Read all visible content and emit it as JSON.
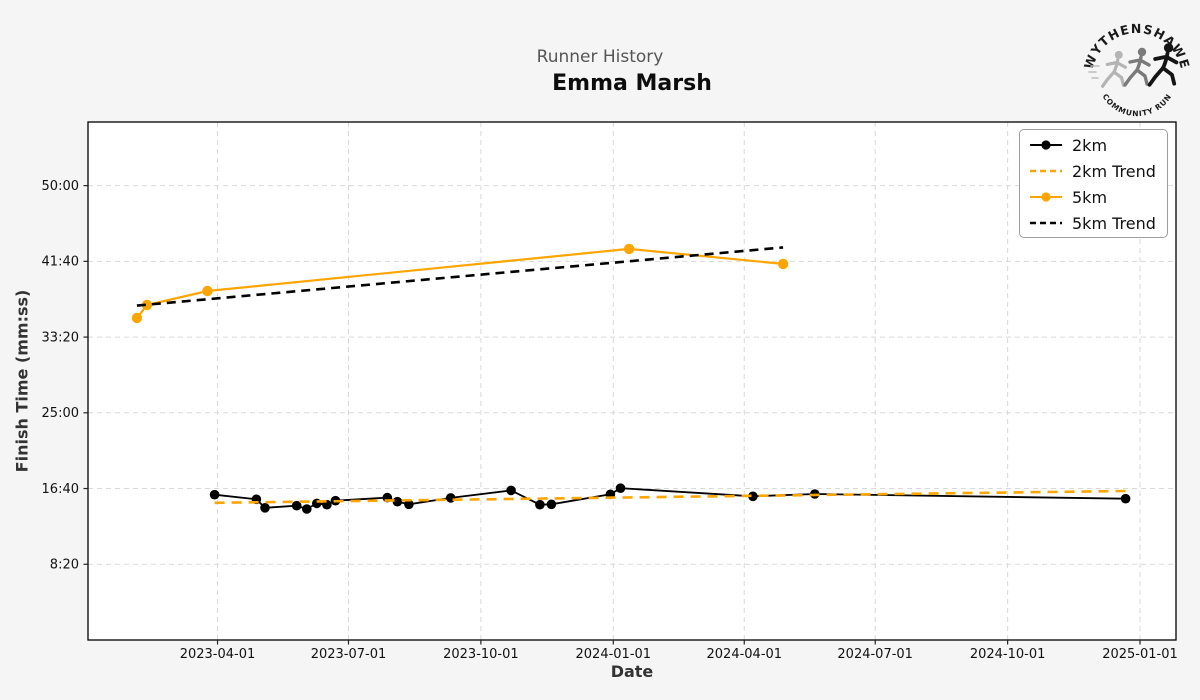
{
  "figure": {
    "background": "#f5f5f5",
    "plot_background": "#ffffff"
  },
  "logo": {
    "top_text": "WYTHENSHAWE",
    "bottom_text": "COMMUNITY RUN"
  },
  "colors": {
    "orange": "#FFA500",
    "black": "#000000",
    "grid": "#d9d9d9",
    "title_gray": "#555555"
  },
  "chart_data": {
    "type": "line",
    "title": "Runner History",
    "subtitle": "Emma Marsh",
    "xlabel": "Date",
    "ylabel": "Finish Time (mm:ss)",
    "grid": true,
    "legend_position": "upper right",
    "x_axis": {
      "range": [
        "2023-01-01",
        "2025-01-26"
      ],
      "ticks": [
        "2023-04-01",
        "2023-07-01",
        "2023-10-01",
        "2024-01-01",
        "2024-04-01",
        "2024-07-01",
        "2024-10-01",
        "2025-01-01"
      ]
    },
    "y_axis": {
      "range_seconds": [
        0,
        3420
      ],
      "tick_labels": [
        "8:20",
        "16:40",
        "25:00",
        "33:20",
        "41:40",
        "50:00"
      ]
    },
    "series": [
      {
        "name": "2km",
        "color": "#000000",
        "dashed": false,
        "markers": true,
        "line_width": 1.8,
        "marker_size": 4.8,
        "dash": "",
        "points": [
          {
            "date": "2023-03-30",
            "time": "15:59"
          },
          {
            "date": "2023-04-28",
            "time": "15:29"
          },
          {
            "date": "2023-05-04",
            "time": "14:33"
          },
          {
            "date": "2023-05-26",
            "time": "14:47"
          },
          {
            "date": "2023-06-02",
            "time": "14:25"
          },
          {
            "date": "2023-06-09",
            "time": "15:02"
          },
          {
            "date": "2023-06-16",
            "time": "14:53"
          },
          {
            "date": "2023-06-22",
            "time": "15:20"
          },
          {
            "date": "2023-07-28",
            "time": "15:40"
          },
          {
            "date": "2023-08-04",
            "time": "15:13"
          },
          {
            "date": "2023-08-12",
            "time": "14:56"
          },
          {
            "date": "2023-09-10",
            "time": "15:38"
          },
          {
            "date": "2023-10-22",
            "time": "16:28"
          },
          {
            "date": "2023-11-11",
            "time": "14:53"
          },
          {
            "date": "2023-11-19",
            "time": "14:56"
          },
          {
            "date": "2023-12-30",
            "time": "16:02"
          },
          {
            "date": "2024-01-06",
            "time": "16:42"
          },
          {
            "date": "2024-04-07",
            "time": "15:49"
          },
          {
            "date": "2024-05-20",
            "time": "16:04"
          },
          {
            "date": "2024-12-22",
            "time": "15:33"
          }
        ]
      },
      {
        "name": "2km Trend",
        "color": "#FFA500",
        "dashed": true,
        "markers": false,
        "line_width": 2.6,
        "marker_size": 0,
        "dash": "10,7",
        "points": [
          {
            "date": "2023-03-30",
            "time": "15:06"
          },
          {
            "date": "2024-12-22",
            "time": "16:24"
          }
        ]
      },
      {
        "name": "5km",
        "color": "#FFA500",
        "dashed": false,
        "markers": true,
        "line_width": 2.2,
        "marker_size": 5.2,
        "dash": "",
        "points": [
          {
            "date": "2023-02-04",
            "time": "35:26"
          },
          {
            "date": "2023-02-11",
            "time": "36:52"
          },
          {
            "date": "2023-03-25",
            "time": "38:24"
          },
          {
            "date": "2024-01-12",
            "time": "43:02"
          },
          {
            "date": "2024-04-28",
            "time": "41:23"
          }
        ]
      },
      {
        "name": "5km Trend",
        "color": "#000000",
        "dashed": true,
        "markers": false,
        "line_width": 2.6,
        "marker_size": 0,
        "dash": "9,6",
        "points": [
          {
            "date": "2023-02-04",
            "time": "36:48"
          },
          {
            "date": "2024-04-28",
            "time": "43:12"
          }
        ]
      }
    ]
  }
}
